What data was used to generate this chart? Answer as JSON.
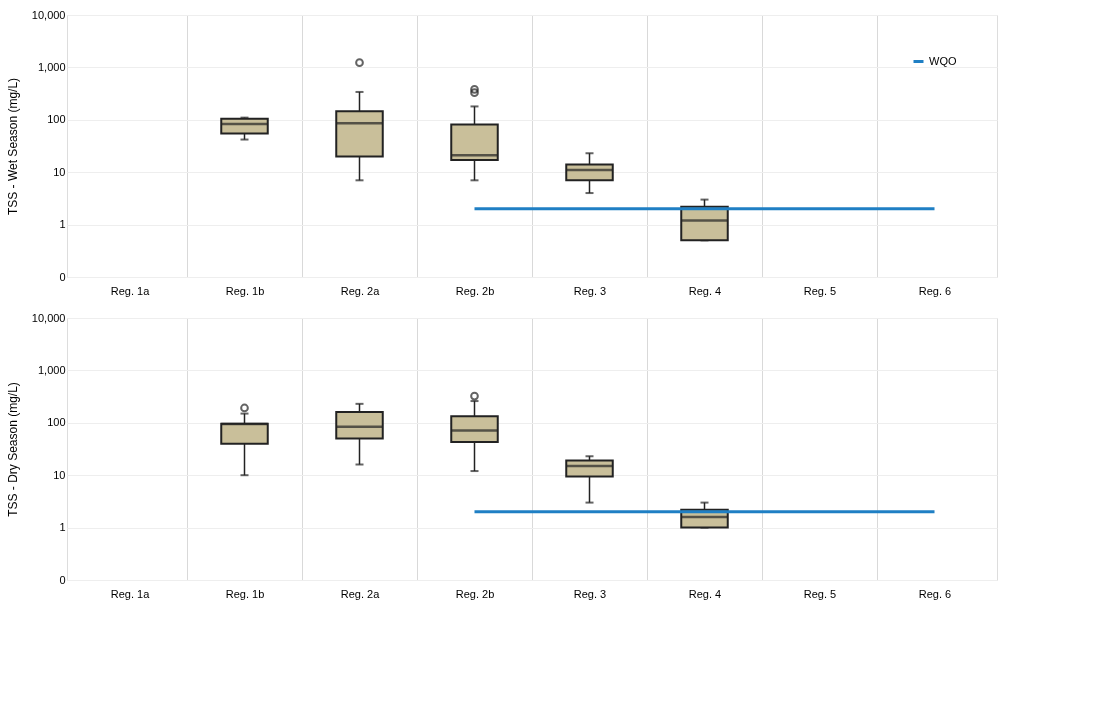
{
  "chart_data": [
    {
      "type": "box",
      "ylabel": "TSS - Wet Season (mg/L)",
      "categories": [
        "Reg. 1a",
        "Reg. 1b",
        "Reg. 2a",
        "Reg. 2b",
        "Reg. 3",
        "Reg. 4",
        "Reg. 5",
        "Reg. 6"
      ],
      "log": true,
      "ylim": [
        0.1,
        10000
      ],
      "yticks": [
        {
          "value": 0.1,
          "label": "0"
        },
        1,
        10,
        100,
        {
          "value": 1000,
          "label": "1,000"
        },
        {
          "value": 10000,
          "label": "10,000"
        }
      ],
      "grid": true,
      "legend": "top right",
      "series": [
        {
          "type": "box",
          "color": "#c9bf9a",
          "boxes": [
            null,
            {
              "low": 42,
              "q1": 55,
              "median": 83,
              "q3": 105,
              "high": 110
            },
            {
              "low": 7,
              "q1": 20,
              "median": 86,
              "q3": 145,
              "high": 340,
              "outliers": [
                1230
              ]
            },
            {
              "low": 7,
              "q1": 17,
              "median": 21,
              "q3": 81,
              "high": 180,
              "outliers": [
                330,
                380
              ]
            },
            {
              "low": 4,
              "q1": 7,
              "median": 11,
              "q3": 14,
              "high": 23
            },
            {
              "low": 0.5,
              "q1": 0.5,
              "median": 1.2,
              "q3": 2.2,
              "high": 3
            },
            null,
            null
          ]
        },
        {
          "type": "line",
          "name": "WQO",
          "color": "#1f7fc4",
          "values": [
            null,
            null,
            null,
            2,
            2,
            2,
            2,
            2
          ]
        }
      ]
    },
    {
      "type": "box",
      "ylabel": "TSS - Dry Season (mg/L)",
      "categories": [
        "Reg. 1a",
        "Reg. 1b",
        "Reg. 2a",
        "Reg. 2b",
        "Reg. 3",
        "Reg. 4",
        "Reg. 5",
        "Reg. 6"
      ],
      "log": true,
      "ylim": [
        0.1,
        10000
      ],
      "yticks": [
        {
          "value": 0.1,
          "label": "0"
        },
        1,
        10,
        100,
        {
          "value": 1000,
          "label": "1,000"
        },
        {
          "value": 10000,
          "label": "10,000"
        }
      ],
      "grid": true,
      "legend": "top right",
      "series": [
        {
          "type": "box",
          "color": "#c9bf9a",
          "boxes": [
            null,
            {
              "low": 10,
              "q1": 40,
              "median": 95,
              "q3": 96,
              "high": 150,
              "outliers": [
                192
              ]
            },
            {
              "low": 16,
              "q1": 50,
              "median": 84,
              "q3": 160,
              "high": 230
            },
            {
              "low": 12,
              "q1": 43,
              "median": 71,
              "q3": 134,
              "high": 260,
              "outliers": [
                324
              ]
            },
            {
              "low": 3,
              "q1": 9.4,
              "median": 15,
              "q3": 19,
              "high": 23
            },
            {
              "low": 1,
              "q1": 1,
              "median": 1.6,
              "q3": 2.2,
              "high": 3
            },
            null,
            null
          ]
        },
        {
          "type": "line",
          "name": "WQO",
          "color": "#1f7fc4",
          "values": [
            null,
            null,
            null,
            2,
            2,
            2,
            2,
            2
          ]
        }
      ]
    }
  ]
}
